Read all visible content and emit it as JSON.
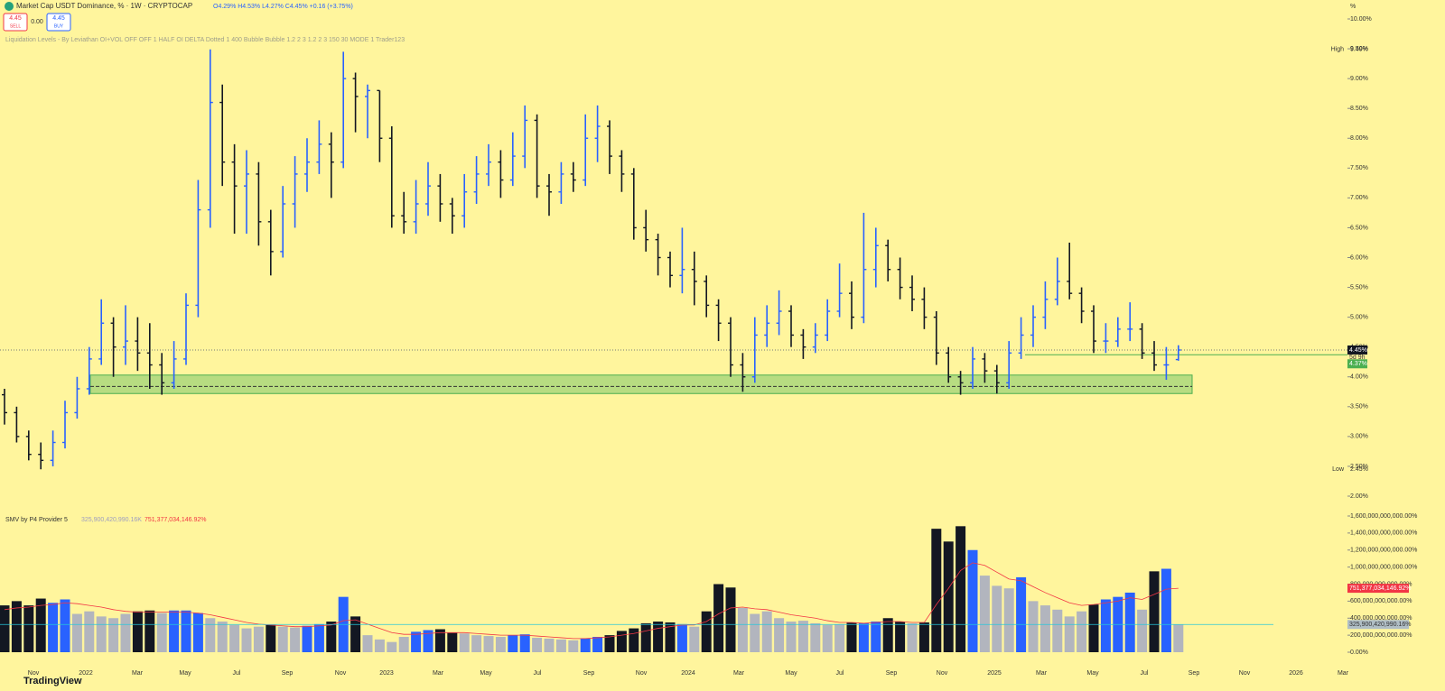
{
  "chart_data": {
    "type": "ohlc",
    "title": "Market Cap USDT Dominance, % · 1W · CRYPTOCAP",
    "legend_values": "O4.29% H4.53% L4.27% C4.45% +0.16 (+3.75%)",
    "sell_price": "4.45",
    "sell_label": "SELL",
    "spread": "0.00",
    "buy_price": "4.45",
    "buy_label": "BUY",
    "indicator_title": "Liquidation Levels - By Leviathan OI+VOL OFF OFF 1 HALF OI DELTA Dotted 1 400 Bubble Bubble 1.2 2 3 1.2 2 3 150 30 MODE 1 Trader123",
    "axis_unit": "%",
    "up_color": "#2962ff",
    "down_color": "#131722",
    "neutral_color": "#b2b5be",
    "ylim": [
      2,
      10
    ],
    "yticks": [
      {
        "value": 2,
        "label": "2.00%"
      },
      {
        "value": 2.5,
        "label": "2.50%"
      },
      {
        "value": 3,
        "label": "3.00%"
      },
      {
        "value": 3.5,
        "label": "3.50%"
      },
      {
        "value": 4,
        "label": "4.00%"
      },
      {
        "value": 4.5,
        "label": "4.50%"
      },
      {
        "value": 5,
        "label": "5.00%"
      },
      {
        "value": 5.5,
        "label": "5.50%"
      },
      {
        "value": 6,
        "label": "6.00%"
      },
      {
        "value": 6.5,
        "label": "6.50%"
      },
      {
        "value": 7,
        "label": "7.00%"
      },
      {
        "value": 7.5,
        "label": "7.50%"
      },
      {
        "value": 8,
        "label": "8.00%"
      },
      {
        "value": 8.5,
        "label": "8.50%"
      },
      {
        "value": 9,
        "label": "9.00%"
      },
      {
        "value": 9.5,
        "label": "9.50%"
      },
      {
        "value": 10,
        "label": "10.00%"
      }
    ],
    "high": {
      "name": "High",
      "value": 9.49,
      "label": "9.49%"
    },
    "low": {
      "name": "Low",
      "value": 2.45,
      "label": "2.45%"
    },
    "last": {
      "value": 4.45,
      "label": "4.45%",
      "countdown": "5d 9h"
    },
    "level": {
      "value": 4.37,
      "label": "4.37%"
    },
    "zone": {
      "top": 4.03,
      "bottom": 3.72,
      "mid": 3.84
    },
    "time_labels": [
      "Nov",
      "2022",
      "Mar",
      "May",
      "Jul",
      "Sep",
      "Nov",
      "2023",
      "Mar",
      "May",
      "Jul",
      "Sep",
      "Nov",
      "2024",
      "Mar",
      "May",
      "Jul",
      "Sep",
      "Nov",
      "2025",
      "Mar",
      "May",
      "Jul",
      "Sep",
      "Nov",
      "2026",
      "Mar"
    ],
    "ohlc": [
      [
        3.7,
        3.8,
        3.2,
        3.4
      ],
      [
        3.4,
        3.5,
        2.9,
        3.0
      ],
      [
        3.0,
        3.1,
        2.6,
        2.7
      ],
      [
        2.7,
        2.9,
        2.45,
        2.6
      ],
      [
        2.6,
        3.1,
        2.5,
        2.9
      ],
      [
        2.9,
        3.6,
        2.8,
        3.4
      ],
      [
        3.4,
        4.0,
        3.3,
        3.8
      ],
      [
        3.8,
        4.5,
        3.7,
        4.3
      ],
      [
        4.3,
        5.3,
        4.2,
        4.9
      ],
      [
        4.9,
        5.0,
        4.0,
        4.5
      ],
      [
        4.5,
        5.2,
        4.2,
        4.6
      ],
      [
        4.6,
        5.0,
        4.1,
        4.4
      ],
      [
        4.4,
        4.9,
        3.8,
        4.2
      ],
      [
        4.2,
        4.4,
        3.7,
        3.9
      ],
      [
        3.9,
        4.6,
        3.8,
        4.3
      ],
      [
        4.3,
        5.4,
        4.2,
        5.2
      ],
      [
        5.2,
        7.3,
        5.0,
        6.8
      ],
      [
        6.8,
        9.49,
        6.5,
        8.6
      ],
      [
        8.6,
        8.9,
        7.2,
        7.6
      ],
      [
        7.6,
        7.9,
        6.4,
        7.2
      ],
      [
        7.2,
        7.8,
        6.4,
        7.4
      ],
      [
        7.4,
        7.6,
        6.2,
        6.6
      ],
      [
        6.6,
        6.8,
        5.7,
        6.1
      ],
      [
        6.1,
        7.2,
        6.0,
        6.9
      ],
      [
        6.9,
        7.7,
        6.5,
        7.4
      ],
      [
        7.4,
        8.0,
        7.1,
        7.6
      ],
      [
        7.6,
        8.3,
        7.4,
        7.9
      ],
      [
        7.9,
        8.1,
        7.0,
        7.6
      ],
      [
        7.6,
        9.45,
        7.5,
        9.0
      ],
      [
        9.0,
        9.1,
        8.1,
        8.7
      ],
      [
        8.7,
        8.9,
        8.0,
        8.8
      ],
      [
        8.8,
        8.8,
        7.6,
        8.0
      ],
      [
        8.0,
        8.2,
        6.5,
        6.7
      ],
      [
        6.7,
        7.1,
        6.4,
        6.6
      ],
      [
        6.6,
        7.3,
        6.4,
        6.9
      ],
      [
        6.9,
        7.6,
        6.7,
        7.2
      ],
      [
        7.2,
        7.4,
        6.6,
        6.9
      ],
      [
        6.9,
        7.0,
        6.4,
        6.7
      ],
      [
        6.7,
        7.4,
        6.5,
        7.1
      ],
      [
        7.1,
        7.7,
        6.9,
        7.4
      ],
      [
        7.4,
        7.9,
        7.2,
        7.6
      ],
      [
        7.6,
        7.8,
        7.0,
        7.3
      ],
      [
        7.3,
        8.1,
        7.2,
        7.7
      ],
      [
        7.7,
        8.55,
        7.5,
        8.3
      ],
      [
        8.3,
        8.4,
        7.0,
        7.2
      ],
      [
        7.2,
        7.4,
        6.7,
        7.1
      ],
      [
        7.1,
        7.6,
        6.9,
        7.4
      ],
      [
        7.4,
        7.6,
        7.1,
        7.3
      ],
      [
        7.3,
        8.4,
        7.2,
        8.0
      ],
      [
        8.0,
        8.55,
        7.6,
        8.2
      ],
      [
        8.2,
        8.3,
        7.4,
        7.7
      ],
      [
        7.7,
        7.8,
        7.1,
        7.4
      ],
      [
        7.4,
        7.5,
        6.3,
        6.5
      ],
      [
        6.5,
        6.8,
        6.1,
        6.3
      ],
      [
        6.3,
        6.4,
        5.7,
        6.0
      ],
      [
        6.0,
        6.1,
        5.5,
        5.7
      ],
      [
        5.7,
        6.5,
        5.4,
        5.8
      ],
      [
        5.8,
        6.1,
        5.2,
        5.6
      ],
      [
        5.6,
        5.7,
        5.0,
        5.2
      ],
      [
        5.2,
        5.3,
        4.6,
        4.9
      ],
      [
        4.9,
        5.0,
        4.0,
        4.2
      ],
      [
        4.2,
        4.4,
        3.75,
        4.0
      ],
      [
        4.0,
        5.0,
        3.9,
        4.7
      ],
      [
        4.7,
        5.2,
        4.5,
        4.9
      ],
      [
        4.9,
        5.45,
        4.7,
        5.1
      ],
      [
        5.1,
        5.2,
        4.5,
        4.7
      ],
      [
        4.7,
        4.8,
        4.3,
        4.5
      ],
      [
        4.5,
        4.9,
        4.4,
        4.7
      ],
      [
        4.7,
        5.3,
        4.6,
        5.1
      ],
      [
        5.1,
        5.9,
        5.0,
        5.4
      ],
      [
        5.4,
        5.6,
        4.8,
        5.0
      ],
      [
        5.0,
        6.75,
        4.9,
        5.8
      ],
      [
        5.8,
        6.5,
        5.5,
        6.2
      ],
      [
        6.2,
        6.3,
        5.6,
        5.8
      ],
      [
        5.8,
        6.0,
        5.3,
        5.5
      ],
      [
        5.5,
        5.7,
        5.1,
        5.3
      ],
      [
        5.3,
        5.5,
        4.8,
        5.0
      ],
      [
        5.0,
        5.1,
        4.2,
        4.4
      ],
      [
        4.4,
        4.5,
        3.9,
        4.0
      ],
      [
        4.0,
        4.1,
        3.7,
        3.9
      ],
      [
        3.9,
        4.5,
        3.8,
        4.3
      ],
      [
        4.3,
        4.4,
        3.9,
        4.1
      ],
      [
        4.1,
        4.2,
        3.72,
        3.9
      ],
      [
        3.9,
        4.6,
        3.8,
        4.4
      ],
      [
        4.4,
        5.0,
        4.3,
        4.7
      ],
      [
        4.7,
        5.2,
        4.5,
        5.0
      ],
      [
        5.0,
        5.6,
        4.8,
        5.3
      ],
      [
        5.3,
        6.0,
        5.2,
        5.6
      ],
      [
        5.6,
        6.25,
        5.3,
        5.4
      ],
      [
        5.4,
        5.5,
        4.9,
        5.1
      ],
      [
        5.1,
        5.2,
        4.4,
        4.6
      ],
      [
        4.6,
        4.9,
        4.4,
        4.6
      ],
      [
        4.6,
        5.0,
        4.5,
        4.8
      ],
      [
        4.8,
        5.25,
        4.6,
        4.8
      ],
      [
        4.8,
        4.9,
        4.3,
        4.4
      ],
      [
        4.4,
        4.6,
        4.1,
        4.2
      ],
      [
        4.2,
        4.5,
        3.95,
        4.2
      ],
      [
        4.29,
        4.53,
        4.27,
        4.45
      ]
    ],
    "volume_indicator": "SMV by P4 Provider 5",
    "volume_legend": "325,900,420,990.16K",
    "ma_legend": "751,377,034,146.92%",
    "ma_color": "#f23645",
    "level_color": "#26c6da",
    "vlim": [
      0,
      1600000000000
    ],
    "vticks": [
      {
        "value": 0,
        "label": "0.00%"
      },
      {
        "value": 200000000000,
        "label": "200,000,000,000.00%"
      },
      {
        "value": 400000000000,
        "label": "400,000,000,000.00%"
      },
      {
        "value": 600000000000,
        "label": "600,000,000,000.00%"
      },
      {
        "value": 800000000000,
        "label": "800,000,000,000.00%"
      },
      {
        "value": 1000000000000,
        "label": "1,000,000,000,000.00%"
      },
      {
        "value": 1200000000000,
        "label": "1,200,000,000,000.00%"
      },
      {
        "value": 1400000000000,
        "label": "1,400,000,000,000.00%"
      },
      {
        "value": 1600000000000,
        "label": "1,600,000,000,000.00%"
      }
    ],
    "volumes": [
      550000000000.0,
      600000000000.0,
      550000000000.0,
      630000000000.0,
      580000000000.0,
      620000000000.0,
      450000000000.0,
      480000000000.0,
      420000000000.0,
      400000000000.0,
      450000000000.0,
      480000000000.0,
      490000000000.0,
      460000000000.0,
      490000000000.0,
      490000000000.0,
      460000000000.0,
      400000000000.0,
      360000000000.0,
      320000000000.0,
      280000000000.0,
      300000000000.0,
      320000000000.0,
      300000000000.0,
      290000000000.0,
      310000000000.0,
      330000000000.0,
      360000000000.0,
      650000000000.0,
      420000000000.0,
      200000000000.0,
      150000000000.0,
      120000000000.0,
      180000000000.0,
      240000000000.0,
      260000000000.0,
      270000000000.0,
      230000000000.0,
      220000000000.0,
      200000000000.0,
      190000000000.0,
      180000000000.0,
      200000000000.0,
      210000000000.0,
      170000000000.0,
      160000000000.0,
      150000000000.0,
      140000000000.0,
      160000000000.0,
      180000000000.0,
      200000000000.0,
      250000000000.0,
      280000000000.0,
      340000000000.0,
      360000000000.0,
      350000000000.0,
      330000000000.0,
      300000000000.0,
      480000000000.0,
      800000000000.0,
      760000000000.0,
      520000000000.0,
      450000000000.0,
      480000000000.0,
      400000000000.0,
      360000000000.0,
      370000000000.0,
      340000000000.0,
      320000000000.0,
      330000000000.0,
      350000000000.0,
      340000000000.0,
      360000000000.0,
      400000000000.0,
      360000000000.0,
      340000000000.0,
      350000000000.0,
      1450000000000.0,
      1300000000000.0,
      1480000000000.0,
      1200000000000.0,
      900000000000.0,
      780000000000.0,
      750000000000.0,
      880000000000.0,
      600000000000.0,
      550000000000.0,
      500000000000.0,
      420000000000.0,
      480000000000.0,
      560000000000.0,
      620000000000.0,
      650000000000.0,
      700000000000.0,
      500000000000.0,
      950000000000.0,
      980000000000.0,
      325900420990.16
    ],
    "volume_ma": [
      500000000000.0,
      520000000000.0,
      530000000000.0,
      550000000000.0,
      560000000000.0,
      580000000000.0,
      570000000000.0,
      550000000000.0,
      530000000000.0,
      500000000000.0,
      480000000000.0,
      470000000000.0,
      470000000000.0,
      470000000000.0,
      470000000000.0,
      470000000000.0,
      460000000000.0,
      440000000000.0,
      410000000000.0,
      380000000000.0,
      350000000000.0,
      330000000000.0,
      320000000000.0,
      310000000000.0,
      300000000000.0,
      300000000000.0,
      310000000000.0,
      320000000000.0,
      370000000000.0,
      380000000000.0,
      330000000000.0,
      280000000000.0,
      230000000000.0,
      210000000000.0,
      210000000000.0,
      220000000000.0,
      230000000000.0,
      230000000000.0,
      230000000000.0,
      220000000000.0,
      210000000000.0,
      200000000000.0,
      200000000000.0,
      200000000000.0,
      190000000000.0,
      180000000000.0,
      170000000000.0,
      160000000000.0,
      160000000000.0,
      170000000000.0,
      180000000000.0,
      200000000000.0,
      220000000000.0,
      250000000000.0,
      280000000000.0,
      300000000000.0,
      320000000000.0,
      320000000000.0,
      360000000000.0,
      450000000000.0,
      520000000000.0,
      530000000000.0,
      510000000000.0,
      500000000000.0,
      470000000000.0,
      440000000000.0,
      420000000000.0,
      400000000000.0,
      370000000000.0,
      350000000000.0,
      350000000000.0,
      340000000000.0,
      350000000000.0,
      360000000000.0,
      360000000000.0,
      350000000000.0,
      350000000000.0,
      560000000000.0,
      750000000000.0,
      960000000000.0,
      1050000000000.0,
      1020000000000.0,
      940000000000.0,
      860000000000.0,
      840000000000.0,
      770000000000.0,
      700000000000.0,
      640000000000.0,
      580000000000.0,
      550000000000.0,
      560000000000.0,
      580000000000.0,
      600000000000.0,
      640000000000.0,
      620000000000.0,
      680000000000.0,
      740000000000.0,
      751377034146.92
    ],
    "volume_marker": {
      "value": 325900420990.16,
      "label": "325,900,420,990.16%"
    },
    "ma_marker": {
      "value": 751377034146.92,
      "label": "751,377,034,146.92%"
    },
    "brand": "TradingView"
  }
}
